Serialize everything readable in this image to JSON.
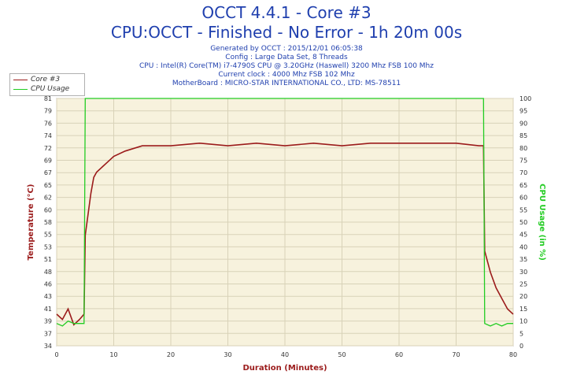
{
  "header": {
    "title": "OCCT 4.4.1 - Core #3",
    "subtitle": "CPU:OCCT - Finished - No Error - 1h 20m 00s",
    "info_lines": [
      "Generated by OCCT : 2015/12/01 06:05:38",
      "Config : Large Data Set, 8 Threads",
      "CPU : Intel(R) Core(TM) i7-4790S CPU @ 3.20GHz (Haswell) 3200 Mhz FSB 100 Mhz",
      "Current clock : 4000 Mhz FSB 102 Mhz",
      "MotherBoard : MICRO-STAR INTERNATIONAL CO., LTD: MS-78511"
    ]
  },
  "legend": {
    "items": [
      {
        "label": "Core #3",
        "color": "#9b1b1b"
      },
      {
        "label": "CPU Usage",
        "color": "#22cc22"
      }
    ]
  },
  "chart_data": {
    "type": "line",
    "xlabel": "Duration (Minutes)",
    "ylabel": "Temperature (°C)",
    "y2label": "CPU Usage (in %)",
    "xlim": [
      0,
      80
    ],
    "ylim": [
      34,
      81
    ],
    "y2lim": [
      0,
      100
    ],
    "x_ticks": [
      0,
      10,
      20,
      30,
      40,
      50,
      60,
      70,
      80
    ],
    "y_ticks": [
      "34",
      "37",
      "39",
      "41",
      "43",
      "46",
      "48",
      "51",
      "53",
      "55",
      "58",
      "60",
      "62",
      "65",
      "67",
      "69",
      "72",
      "74",
      "76",
      "79",
      "81"
    ],
    "y2_ticks": [
      0,
      5,
      10,
      15,
      20,
      25,
      30,
      35,
      40,
      45,
      50,
      55,
      60,
      65,
      70,
      75,
      80,
      85,
      90,
      95,
      100
    ],
    "grid": true,
    "legend_position": "top-left",
    "series": [
      {
        "name": "Core #3",
        "axis": "left",
        "color": "#9b1b1b",
        "points": [
          [
            0,
            40
          ],
          [
            1,
            39
          ],
          [
            2,
            41
          ],
          [
            3,
            38
          ],
          [
            4,
            39
          ],
          [
            4.8,
            40
          ],
          [
            5,
            55
          ],
          [
            5.5,
            59
          ],
          [
            6,
            63
          ],
          [
            6.5,
            66
          ],
          [
            7,
            67
          ],
          [
            8,
            68
          ],
          [
            9,
            69
          ],
          [
            10,
            70
          ],
          [
            12,
            71
          ],
          [
            15,
            72
          ],
          [
            20,
            72
          ],
          [
            25,
            72.5
          ],
          [
            30,
            72
          ],
          [
            35,
            72.5
          ],
          [
            40,
            72
          ],
          [
            45,
            72.5
          ],
          [
            50,
            72
          ],
          [
            55,
            72.5
          ],
          [
            60,
            72.5
          ],
          [
            65,
            72.5
          ],
          [
            70,
            72.5
          ],
          [
            74,
            72
          ],
          [
            74.8,
            72
          ],
          [
            75,
            52
          ],
          [
            76,
            48
          ],
          [
            77,
            45
          ],
          [
            78,
            43
          ],
          [
            79,
            41
          ],
          [
            80,
            40
          ]
        ]
      },
      {
        "name": "CPU Usage",
        "axis": "right",
        "color": "#22cc22",
        "points": [
          [
            0,
            9
          ],
          [
            1,
            8
          ],
          [
            2,
            10
          ],
          [
            3,
            9
          ],
          [
            4,
            9
          ],
          [
            4.8,
            9
          ],
          [
            5,
            100
          ],
          [
            74.8,
            100
          ],
          [
            75,
            9
          ],
          [
            76,
            8
          ],
          [
            77,
            9
          ],
          [
            78,
            8
          ],
          [
            79,
            9
          ],
          [
            80,
            9
          ]
        ]
      }
    ]
  }
}
